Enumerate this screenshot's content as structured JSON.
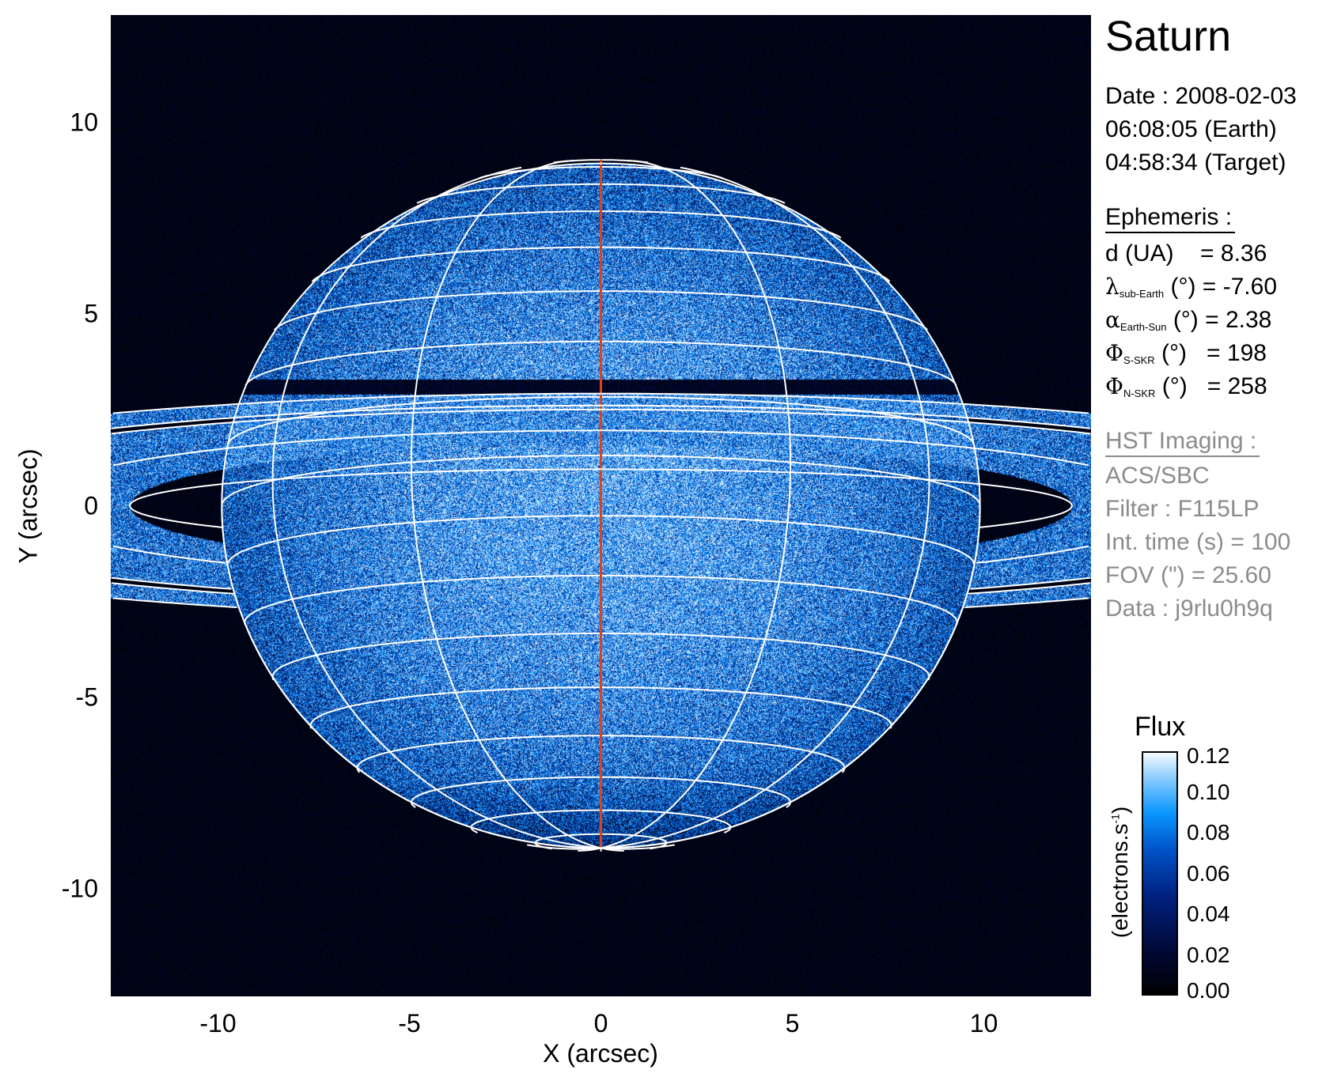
{
  "chart_data": {
    "type": "heatmap",
    "title": "Saturn",
    "xlabel": "X (arcsec)",
    "ylabel": "Y (arcsec)",
    "xlim": [
      -12.8,
      12.8
    ],
    "ylim": [
      -12.8,
      12.8
    ],
    "xticks": [
      "-10",
      "-5",
      "0",
      "5",
      "10"
    ],
    "yticks": [
      "10",
      "5",
      "0",
      "-5",
      "-10"
    ],
    "xtick_values": [
      -10,
      -5,
      0,
      5,
      10
    ],
    "ytick_values": [
      10,
      5,
      0,
      -5,
      -10
    ],
    "colorbar": {
      "title": "Flux",
      "label": "(electrons.s",
      "label_sup": "-1",
      "label_close": ")",
      "range": [
        0,
        0.12
      ],
      "ticks": [
        "0.12",
        "0.10",
        "0.08",
        "0.06",
        "0.04",
        "0.02",
        "0.00"
      ],
      "tick_values": [
        0.12,
        0.1,
        0.08,
        0.06,
        0.04,
        0.02,
        0.0
      ],
      "colormap": [
        "#000000",
        "#000a3c",
        "#00207e",
        "#0054c8",
        "#0a96ff",
        "#7cc6ff",
        "#f4faff"
      ]
    },
    "grid_color": "#ffffff",
    "central_meridian_color": "#e0401a",
    "sub_earth_latitude_deg": -7.6
  },
  "info": {
    "date": "Date : 2008-02-03",
    "time_earth": "06:08:05 (Earth)",
    "time_target": "04:58:34 (Target)"
  },
  "ephemeris": {
    "heading": "Ephemeris :",
    "d_label": "d (UA)",
    "d_value": "= 8.36",
    "lambda_sym": "λ",
    "lambda_sub": "sub-Earth",
    "lambda_value": "(°) = -7.60",
    "alpha_sym": "α",
    "alpha_sub": "Earth-Sun",
    "alpha_value": "(°) = 2.38",
    "phis_sym": "Φ",
    "phis_sub": "S-SKR",
    "phis_value": "(°)   = 198",
    "phin_sym": "Φ",
    "phin_sub": "N-SKR",
    "phin_value": "(°)   = 258"
  },
  "imaging": {
    "heading": "HST Imaging :",
    "instrument": "ACS/SBC",
    "filter": "Filter : F115LP",
    "int_time": "Int. time (s) = 100",
    "fov": "FOV (\") = 25.60",
    "data": "Data : j9rlu0h9q"
  }
}
